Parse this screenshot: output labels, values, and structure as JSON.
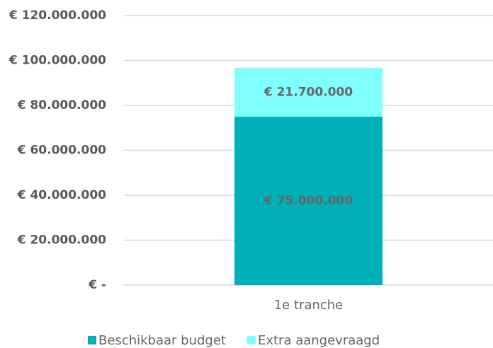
{
  "chart_data": {
    "type": "stacked_bar",
    "categories": [
      "1e tranche"
    ],
    "series": [
      {
        "name": "Beschikbaar budget",
        "color": "#00b0b9",
        "values": [
          75000000
        ],
        "value_labels": [
          "€ 75.000.000"
        ]
      },
      {
        "name": "Extra aangevraagd",
        "color": "#80ffff",
        "values": [
          21700000
        ],
        "value_labels": [
          "€ 21.700.000"
        ]
      }
    ],
    "ylim": [
      0,
      120000000
    ],
    "yticks": [
      {
        "value": 0,
        "label": "€ -"
      },
      {
        "value": 20000000,
        "label": "€ 20.000.000"
      },
      {
        "value": 40000000,
        "label": "€ 40.000.000"
      },
      {
        "value": 60000000,
        "label": "€ 60.000.000"
      },
      {
        "value": 80000000,
        "label": "€ 80.000.000"
      },
      {
        "value": 100000000,
        "label": "€ 100.000.000"
      },
      {
        "value": 120000000,
        "label": "€ 120.000.000"
      }
    ],
    "grid": true,
    "legend": "bottom"
  }
}
